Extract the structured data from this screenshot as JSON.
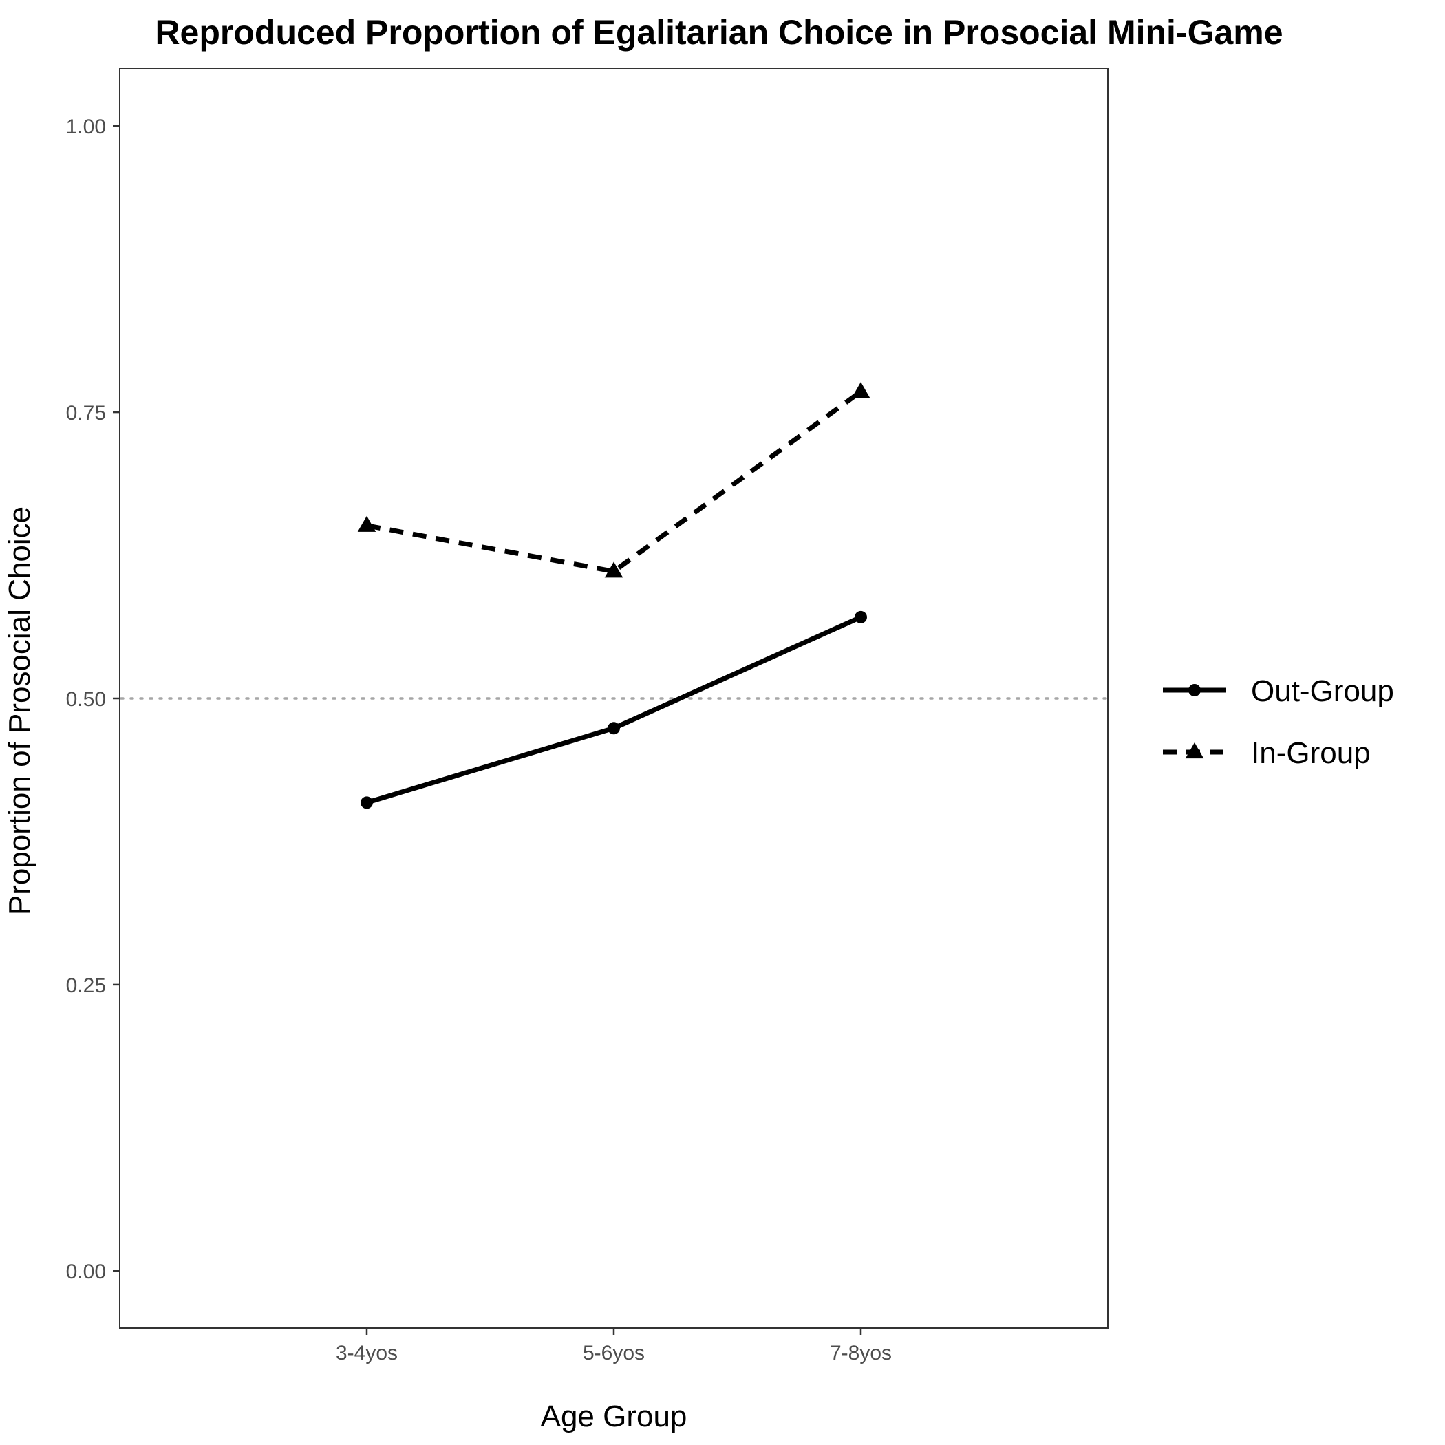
{
  "chart_data": {
    "type": "line",
    "title": "Reproduced Proportion of Egalitarian Choice in Prosocial Mini-Game",
    "xlabel": "Age Group",
    "ylabel": "Proportion of Prosocial Choice",
    "categories": [
      "3-4yos",
      "5-6yos",
      "7-8yos"
    ],
    "ylim": [
      -0.05,
      1.05
    ],
    "yticks": [
      0.0,
      0.25,
      0.5,
      0.75,
      1.0
    ],
    "ytick_labels": [
      "0.00",
      "0.25",
      "0.50",
      "0.75",
      "1.00"
    ],
    "reference_line": {
      "y": 0.5,
      "style": "dotted",
      "color": "#a6a6a6"
    },
    "grid": false,
    "legend_position": "right",
    "series": [
      {
        "name": "Out-Group",
        "values": [
          0.409,
          0.474,
          0.571
        ],
        "line": "solid",
        "marker": "circle",
        "color": "#000000"
      },
      {
        "name": "In-Group",
        "values": [
          0.651,
          0.611,
          0.768
        ],
        "line": "dashed",
        "marker": "triangle",
        "color": "#000000"
      }
    ]
  }
}
